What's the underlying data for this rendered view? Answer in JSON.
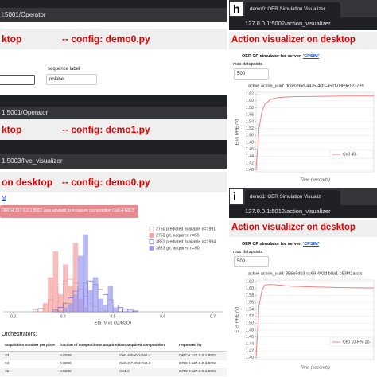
{
  "panel_left": {
    "window1": {
      "url": "l:5001/Operator",
      "heading": "ktop",
      "config": "-- config: demo0.py",
      "sequence_label": "sequence label",
      "sequence_value": "nolabel"
    },
    "window2": {
      "url": "1:5001/Operator",
      "heading": "ktop",
      "config": "-- config: demo1.py"
    },
    "window3": {
      "url": "1:5003/live_visualizer",
      "heading": "on desktop",
      "config": "-- config: demo0.py",
      "link": "M",
      "alert": "ORCH 127.0.0.1:8001 was advised to measure composition Ce0.4-Ni0.5",
      "histogram": {
        "type": "histogram",
        "x_label": "Eta (V vs O2/H2O)",
        "bins": [
          0.34,
          0.35,
          0.36,
          0.37,
          0.38,
          0.39,
          0.4,
          0.41,
          0.42,
          0.43,
          0.44,
          0.45,
          0.46,
          0.47,
          0.48,
          0.49,
          0.5,
          0.51,
          0.52,
          0.53,
          0.54,
          0.55,
          0.56
        ],
        "series": [
          {
            "name": "2750 predicted available n=1991",
            "color": "#e88080",
            "filled": false,
            "values": [
              2,
              4,
              8,
              14,
              22,
              30,
              36,
              38,
              34,
              26,
              18,
              10,
              6,
              3,
              1,
              0,
              0,
              0,
              0,
              0,
              0,
              0
            ]
          },
          {
            "name": "2750 g.t. acquired n=55",
            "color": "#f4a0a0",
            "filled": true,
            "values": [
              0,
              0,
              10,
              40,
              70,
              20,
              55,
              30,
              80,
              15,
              5,
              0,
              0,
              0,
              0,
              0,
              0,
              0,
              0,
              0,
              0,
              0
            ]
          },
          {
            "name": "3851 predicted available n=1994",
            "color": "#5a5ad0",
            "filled": false,
            "values": [
              0,
              0,
              0,
              0,
              2,
              5,
              10,
              16,
              24,
              30,
              34,
              36,
              32,
              26,
              20,
              14,
              8,
              5,
              3,
              2,
              1,
              0
            ]
          },
          {
            "name": "3851 g.t. acquired n=50",
            "color": "#9a9af0",
            "filled": true,
            "values": [
              0,
              0,
              0,
              0,
              0,
              0,
              5,
              10,
              20,
              65,
              90,
              25,
              40,
              15,
              8,
              30,
              5,
              0,
              0,
              0,
              0,
              0
            ]
          }
        ],
        "xlim": [
          0.28,
          0.72
        ],
        "xticks": [
          0.3,
          0.4,
          0.5,
          0.6,
          0.7
        ],
        "ylim": [
          0,
          100
        ]
      }
    },
    "orchestrators": {
      "title": "Orchestrators:",
      "columns": [
        "acquisition number per plate",
        "fraction of compositions acquired",
        "last acquired composition",
        "requested by"
      ],
      "rows": [
        [
          "33",
          "0.0269",
          "Ce0.4-Fe0.2-Ni0.4",
          "ORCH 127.0.0.1:8001"
        ],
        [
          "34",
          "0.0289",
          "Ce0.4-Fe0.3-Ni0.3",
          "ORCH 127.0.0.1:8001"
        ],
        [
          "35",
          "0.0289",
          "Ce1.0",
          "ORCH 127.0.0.1:8001"
        ]
      ]
    }
  },
  "panel_h": {
    "letter": "h",
    "tab": "demo0: OER Simulation Visualizer",
    "url": "127.0.0.1:5002/action_visualizer",
    "heading": "Action visualizer on desktop",
    "server_text": "OER CP simulator for server",
    "server_link": "'CPSIM'",
    "max_label": "max datapoints",
    "max_value": "500",
    "chart": {
      "type": "line",
      "title": "active action_uuid: dca329ae-4475-4cf3-a51f-0969e1237e9",
      "y_label": "E vs RHE (V)",
      "x_label": "Time (seconds)",
      "x": [
        0,
        1,
        2,
        3,
        5,
        8,
        12,
        20,
        30,
        40
      ],
      "series": [
        {
          "name": "Ce0 40-",
          "color": "#f08080",
          "values": [
            1.4,
            1.52,
            1.57,
            1.59,
            1.605,
            1.61,
            1.612,
            1.613,
            1.614,
            1.614
          ]
        }
      ],
      "xlim": [
        0,
        40
      ],
      "ylim": [
        1.395,
        1.625
      ],
      "yticks": [
        1.62,
        {
          "value": 1.6,
          "label": "1.60"
        },
        1.58,
        1.56,
        1.54,
        1.52,
        {
          "value": 1.5,
          "label": "1.50"
        },
        1.48,
        1.46,
        1.44,
        1.42,
        {
          "value": 1.4,
          "label": "1.40"
        }
      ]
    }
  },
  "panel_i": {
    "letter": "i",
    "tab": "demo1: OER Simulation Visualiz",
    "url": "127.0.0.1:5012/action_visualizer",
    "heading": "Action visualizer on desktop",
    "server_text": "OER CP simulator for server",
    "server_link": "'CPSIM'",
    "max_label": "max datapoints",
    "max_value": "500",
    "chart": {
      "type": "line",
      "title": "active action_uuid: 356a5db3-cc69-402d-b8a1-c53f42acca",
      "y_label": "E vs RHE (V)",
      "x_label": "Time (seconds)",
      "x": [
        0,
        1,
        2,
        3,
        5,
        8,
        12,
        20,
        30,
        40
      ],
      "series": [
        {
          "name": "Ce0 10-Fe0 20-",
          "color": "#f08080",
          "values": [
            1.4,
            1.55,
            1.595,
            1.61,
            1.612,
            1.61,
            1.607,
            1.605,
            1.603,
            1.602
          ]
        }
      ],
      "xlim": [
        0,
        40
      ],
      "ylim": [
        1.395,
        1.625
      ],
      "yticks": [
        1.62,
        {
          "value": 1.6,
          "label": "1.60"
        },
        1.58,
        1.56,
        1.54,
        1.52,
        {
          "value": 1.5,
          "label": "1.50"
        },
        1.48,
        1.46,
        1.44,
        1.42,
        {
          "value": 1.4,
          "label": "1.40"
        }
      ]
    }
  }
}
